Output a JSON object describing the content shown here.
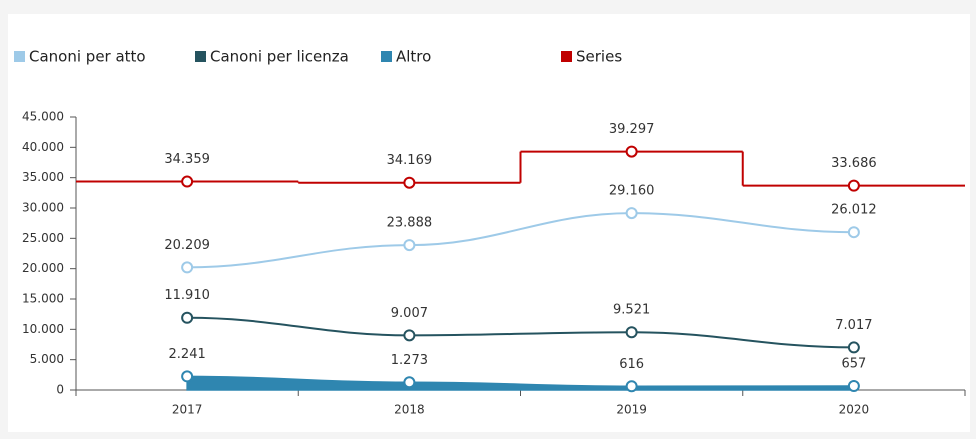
{
  "chart_data": {
    "type": "line",
    "categories": [
      "2017",
      "2018",
      "2019",
      "2020"
    ],
    "series": [
      {
        "name": "Canoni per atto",
        "color": "#9ecae8",
        "style": "smooth",
        "values": [
          20209,
          23888,
          29160,
          26012
        ],
        "value_labels": [
          "20.209",
          "23.888",
          "29.160",
          "26.012"
        ]
      },
      {
        "name": "Canoni per licenza",
        "color": "#25535f",
        "style": "smooth",
        "values": [
          11910,
          9007,
          9521,
          7017
        ],
        "value_labels": [
          "11.910",
          "9.007",
          "9.521",
          "7.017"
        ]
      },
      {
        "name": "Altro",
        "color": "#2f86b0",
        "style": "area",
        "values": [
          2241,
          1273,
          616,
          657
        ],
        "value_labels": [
          "2.241",
          "1.273",
          "616",
          "657"
        ]
      },
      {
        "name": "Series",
        "color": "#c00000",
        "style": "step",
        "values": [
          34359,
          34169,
          39297,
          33686
        ],
        "value_labels": [
          "34.359",
          "34.169",
          "39.297",
          "33.686"
        ]
      }
    ],
    "ylim": [
      0,
      45000
    ],
    "yticks": [
      0,
      {
        "value": 5000,
        "label": "5.000"
      },
      {
        "value": 10000,
        "label": "10.000"
      },
      {
        "value": 15000,
        "label": "15.000"
      },
      {
        "value": 20000,
        "label": "20.000"
      },
      {
        "value": 25000,
        "label": "25.000"
      },
      {
        "value": 30000,
        "label": "30.000"
      },
      {
        "value": 35000,
        "label": "35.000"
      },
      {
        "value": 40000,
        "label": "40.000"
      },
      {
        "value": 45000,
        "label": "45.000"
      }
    ],
    "legend": "top"
  }
}
